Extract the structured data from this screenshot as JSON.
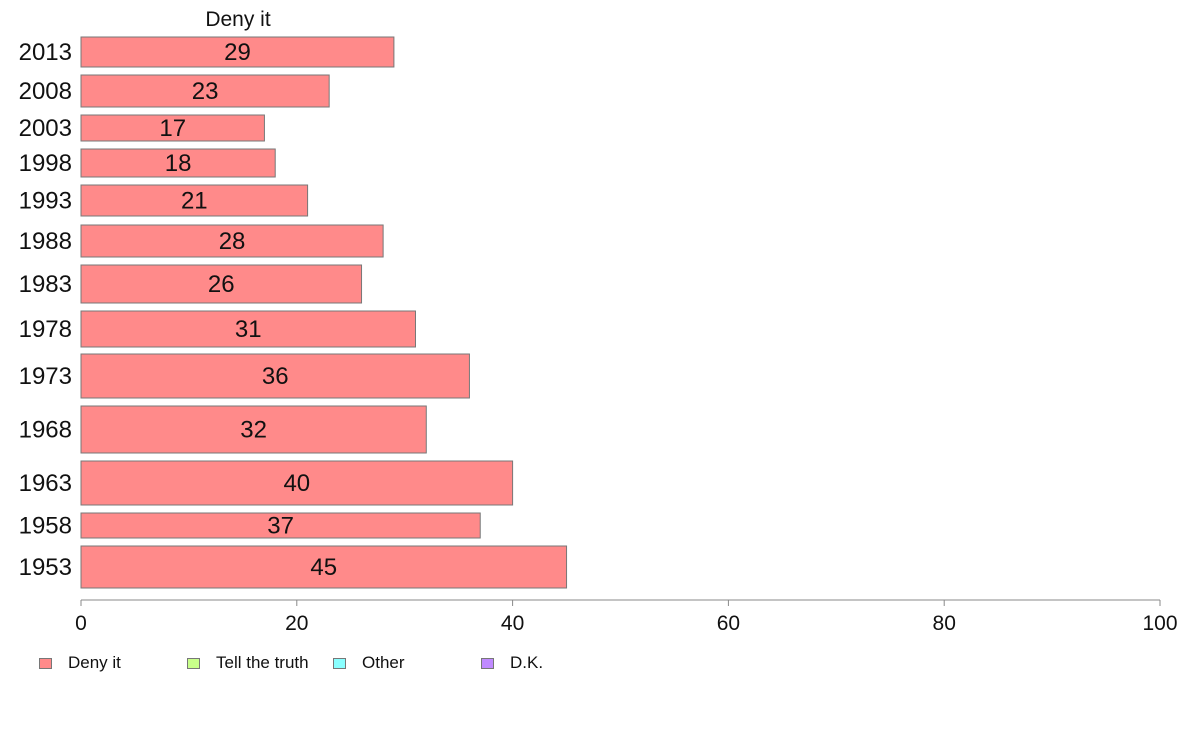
{
  "chart_data": {
    "type": "bar",
    "orientation": "horizontal",
    "panel_title": "Deny it",
    "categories": [
      "2013",
      "2008",
      "2003",
      "1998",
      "1993",
      "1988",
      "1983",
      "1978",
      "1973",
      "1968",
      "1963",
      "1958",
      "1953"
    ],
    "series": [
      {
        "name": "Deny it",
        "color": "#ff8a8a",
        "values": [
          29,
          23,
          17,
          18,
          21,
          28,
          26,
          31,
          36,
          32,
          40,
          37,
          45
        ]
      }
    ],
    "data_labels": [
      "29",
      "23",
      "17",
      "18",
      "21",
      "28",
      "26",
      "31",
      "36",
      "32",
      "40",
      "37",
      "45"
    ],
    "xlim": [
      0,
      100
    ],
    "x_ticks": [
      "0",
      "20",
      "40",
      "60",
      "80",
      "100"
    ],
    "grid": false,
    "legend_position": "bottom",
    "legend": [
      {
        "label": "Deny it",
        "color": "#ff8a8a"
      },
      {
        "label": "Tell the truth",
        "color": "#c8ff8a"
      },
      {
        "label": "Other",
        "color": "#8affff"
      },
      {
        "label": "D.K.",
        "color": "#c08aff"
      }
    ]
  }
}
